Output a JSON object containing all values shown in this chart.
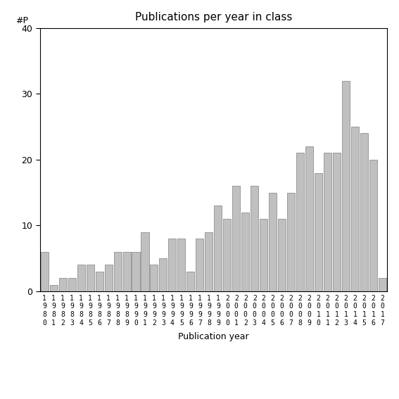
{
  "title": "Publications per year in class",
  "xlabel": "Publication year",
  "ylabel": "#P",
  "years": [
    "1980",
    "1981",
    "1982",
    "1983",
    "1984",
    "1985",
    "1986",
    "1987",
    "1988",
    "1989",
    "1990",
    "1991",
    "1992",
    "1993",
    "1994",
    "1995",
    "1996",
    "1997",
    "1998",
    "1999",
    "2000",
    "2001",
    "2002",
    "2003",
    "2004",
    "2005",
    "2006",
    "2007",
    "2008",
    "2009",
    "2010",
    "2011",
    "2012",
    "2013",
    "2014",
    "2015",
    "2016",
    "2017"
  ],
  "values": [
    6,
    1,
    2,
    2,
    4,
    4,
    3,
    4,
    6,
    6,
    6,
    9,
    4,
    5,
    8,
    8,
    3,
    8,
    9,
    13,
    11,
    16,
    12,
    16,
    11,
    15,
    11,
    15,
    21,
    22,
    18,
    21,
    21,
    32,
    25,
    24,
    20,
    2
  ],
  "ylim": [
    0,
    40
  ],
  "yticks": [
    0,
    10,
    20,
    30,
    40
  ],
  "bar_color": "#c0c0c0",
  "bar_edge_color": "#808080",
  "bg_color": "#ffffff",
  "title_fontsize": 11,
  "label_fontsize": 9,
  "tick_fontsize": 9
}
